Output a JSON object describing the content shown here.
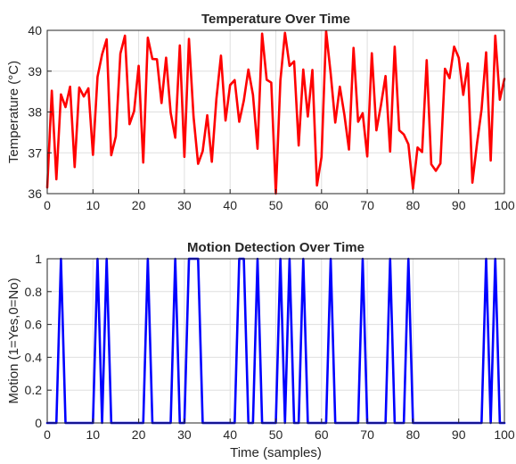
{
  "chart_data": [
    {
      "type": "line",
      "title": "Temperature Over Time",
      "xlabel": "",
      "ylabel": "Temperature (°C)",
      "xlim": [
        0,
        100
      ],
      "ylim": [
        36,
        40
      ],
      "xticks": [
        0,
        10,
        20,
        30,
        40,
        50,
        60,
        70,
        80,
        90,
        100
      ],
      "yticks": [
        36,
        37,
        38,
        39,
        40
      ],
      "grid": true,
      "series": [
        {
          "color": "#ff0000",
          "x": [
            0,
            1,
            2,
            3,
            4,
            5,
            6,
            7,
            8,
            9,
            10,
            11,
            12,
            13,
            14,
            15,
            16,
            17,
            18,
            19,
            20,
            21,
            22,
            23,
            24,
            25,
            26,
            27,
            28,
            29,
            30,
            31,
            32,
            33,
            34,
            35,
            36,
            37,
            38,
            39,
            40,
            41,
            42,
            43,
            44,
            45,
            46,
            47,
            48,
            49,
            50,
            51,
            52,
            53,
            54,
            55,
            56,
            57,
            58,
            59,
            60,
            61,
            62,
            63,
            64,
            65,
            66,
            67,
            68,
            69,
            70,
            71,
            72,
            73,
            74,
            75,
            76,
            77,
            78,
            79,
            80,
            81,
            82,
            83,
            84,
            85,
            86,
            87,
            88,
            89,
            90,
            91,
            92,
            93,
            94,
            95,
            96,
            97,
            98,
            99,
            100
          ],
          "y": [
            36.15,
            38.52,
            36.35,
            38.43,
            38.12,
            38.62,
            36.65,
            38.6,
            38.38,
            38.58,
            36.95,
            38.86,
            39.41,
            39.78,
            36.94,
            37.4,
            39.43,
            39.87,
            37.7,
            38.02,
            39.13,
            36.76,
            39.82,
            39.3,
            39.29,
            38.22,
            39.33,
            37.98,
            37.37,
            39.63,
            36.9,
            39.79,
            37.89,
            36.73,
            37.04,
            37.92,
            36.78,
            38.32,
            39.38,
            37.79,
            38.66,
            38.78,
            37.76,
            38.28,
            39.04,
            38.42,
            37.1,
            39.92,
            38.79,
            38.72,
            36.0,
            38.77,
            39.94,
            39.13,
            39.24,
            37.18,
            39.04,
            37.89,
            39.03,
            36.2,
            36.9,
            39.98,
            38.94,
            37.74,
            38.62,
            37.93,
            37.08,
            39.57,
            37.76,
            37.97,
            36.91,
            39.44,
            37.55,
            38.17,
            38.88,
            37.03,
            39.6,
            37.55,
            37.45,
            37.21,
            36.12,
            37.13,
            37.02,
            39.27,
            36.72,
            36.56,
            36.74,
            39.06,
            38.83,
            39.6,
            39.33,
            38.42,
            39.19,
            36.27,
            37.22,
            38.06,
            39.46,
            36.81,
            39.87,
            38.3,
            38.81
          ]
        }
      ]
    },
    {
      "type": "line",
      "title": "Motion Detection Over Time",
      "xlabel": "Time (samples)",
      "ylabel": "Motion (1=Yes,0=No)",
      "xlim": [
        0,
        100
      ],
      "ylim": [
        0,
        1
      ],
      "xticks": [
        0,
        10,
        20,
        30,
        40,
        50,
        60,
        70,
        80,
        90,
        100
      ],
      "yticks": [
        0,
        0.2,
        0.4,
        0.6,
        0.8,
        1
      ],
      "grid": true,
      "series": [
        {
          "color": "#0000ff",
          "x": [
            0,
            1,
            2,
            3,
            4,
            5,
            6,
            7,
            8,
            9,
            10,
            11,
            12,
            13,
            14,
            15,
            16,
            17,
            18,
            19,
            20,
            21,
            22,
            23,
            24,
            25,
            26,
            27,
            28,
            29,
            30,
            31,
            32,
            33,
            34,
            35,
            36,
            37,
            38,
            39,
            40,
            41,
            42,
            43,
            44,
            45,
            46,
            47,
            48,
            49,
            50,
            51,
            52,
            53,
            54,
            55,
            56,
            57,
            58,
            59,
            60,
            61,
            62,
            63,
            64,
            65,
            66,
            67,
            68,
            69,
            70,
            71,
            72,
            73,
            74,
            75,
            76,
            77,
            78,
            79,
            80,
            81,
            82,
            83,
            84,
            85,
            86,
            87,
            88,
            89,
            90,
            91,
            92,
            93,
            94,
            95,
            96,
            97,
            98,
            99,
            100
          ],
          "y": [
            0,
            0,
            0,
            1,
            0,
            0,
            0,
            0,
            0,
            0,
            0,
            1,
            0,
            1,
            0,
            0,
            0,
            0,
            0,
            0,
            0,
            0,
            1,
            0,
            0,
            0,
            0,
            0,
            1,
            0,
            0,
            1,
            1,
            1,
            0,
            0,
            0,
            0,
            0,
            0,
            0,
            0,
            1,
            1,
            0,
            0,
            1,
            0,
            0,
            0,
            0,
            1,
            0,
            1,
            0,
            0,
            1,
            0,
            0,
            0,
            0,
            0,
            1,
            0,
            0,
            0,
            0,
            0,
            0,
            1,
            0,
            0,
            0,
            0,
            0,
            1,
            0,
            0,
            0,
            1,
            0,
            0,
            0,
            0,
            0,
            0,
            0,
            0,
            0,
            0,
            0,
            0,
            0,
            0,
            0,
            0,
            1,
            0,
            1,
            0,
            0
          ]
        }
      ]
    }
  ]
}
